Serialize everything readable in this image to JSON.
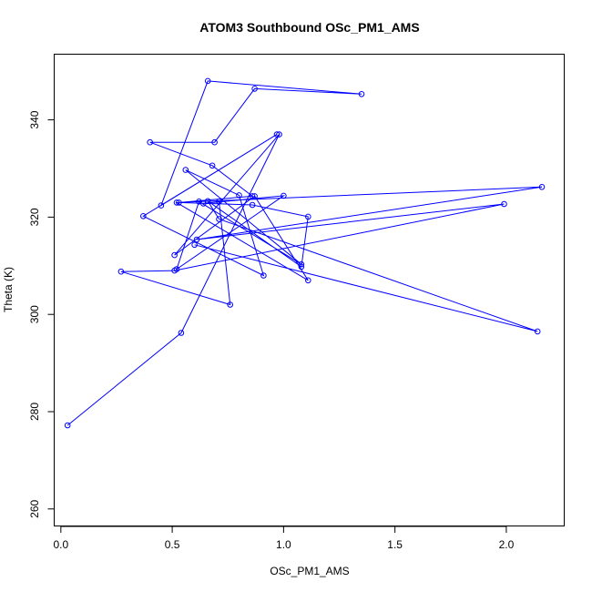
{
  "chart_data": {
    "type": "line",
    "title": "ATOM3 Southbound OSc_PM1_AMS",
    "xlabel": "OSc_PM1_AMS",
    "ylabel": "Theta (K)",
    "xlim": [
      -0.03,
      2.26
    ],
    "ylim": [
      256.5,
      353.5
    ],
    "xticks": [
      0.0,
      0.5,
      1.0,
      1.5,
      2.0
    ],
    "xtick_labels": [
      "0.0",
      "0.5",
      "1.0",
      "1.5",
      "2.0"
    ],
    "yticks": [
      260,
      280,
      300,
      320,
      340
    ],
    "ytick_labels": [
      "260",
      "280",
      "300",
      "320",
      "340"
    ],
    "color": "#0000ff",
    "series": [
      {
        "name": "OSc_PM1_AMS vs Theta",
        "x": [
          0.03,
          0.54,
          0.98,
          0.51,
          0.87,
          1.11,
          0.52,
          2.16,
          0.61,
          1.99,
          0.51,
          0.27,
          0.76,
          0.71,
          0.64,
          1.0,
          0.52,
          0.62,
          1.08,
          0.56,
          0.8,
          0.91,
          0.37,
          0.97,
          0.45,
          0.66,
          1.35,
          0.87,
          0.69,
          0.4,
          0.68,
          0.86,
          0.53,
          0.86,
          1.11,
          1.08,
          0.66,
          0.71,
          2.14,
          0.6
        ],
        "y": [
          277.2,
          296.2,
          337.0,
          312.2,
          324.3,
          307.0,
          323.0,
          326.2,
          315.4,
          322.7,
          309.0,
          308.8,
          302.0,
          323.2,
          322.8,
          324.4,
          309.3,
          323.2,
          310.3,
          329.7,
          324.5,
          308.0,
          320.2,
          337.0,
          322.4,
          348.0,
          345.3,
          346.4,
          335.4,
          335.4,
          330.6,
          324.3,
          323.0,
          322.5,
          320.1,
          309.8,
          323.3,
          319.6,
          296.5,
          314.3
        ]
      }
    ]
  }
}
